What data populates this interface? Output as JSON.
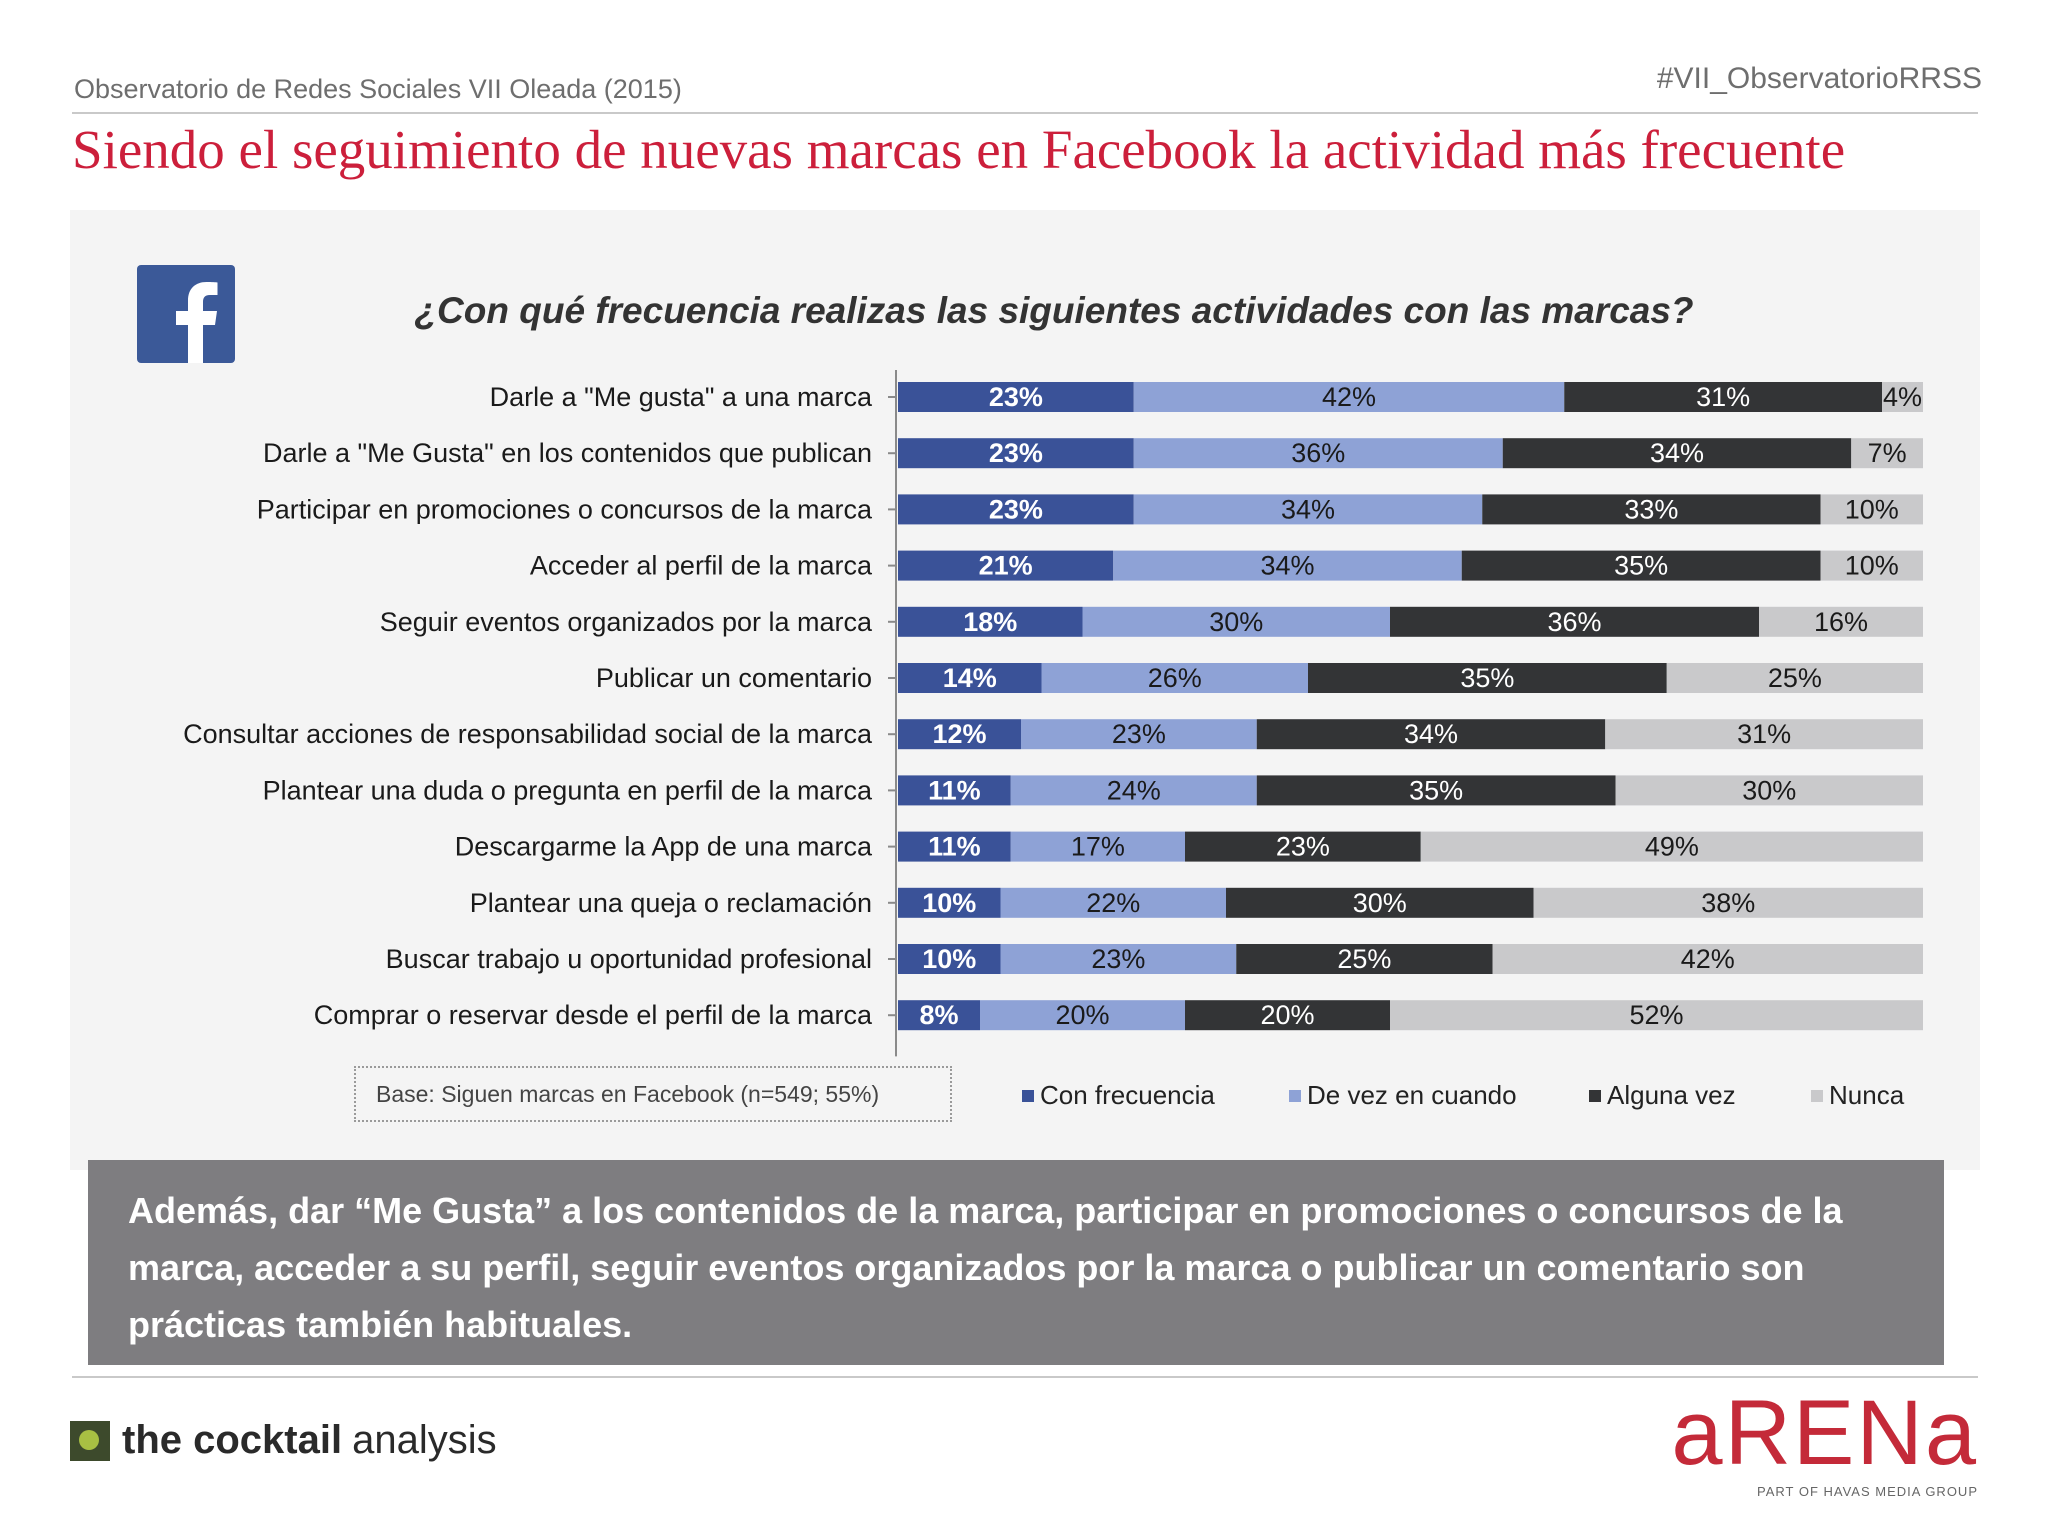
{
  "header": {
    "subtitle": "Observatorio de Redes Sociales VII Oleada (2015)",
    "hashtag": "#VII_ObservatorioRRSS",
    "title": "Siendo el seguimiento de nuevas marcas en Facebook la actividad más frecuente"
  },
  "question": "¿Con qué frecuencia realizas las siguientes actividades con las marcas?",
  "colors": {
    "title": "#cc1f3b",
    "con_frecuencia": "#3a5298",
    "de_vez_en_cuando": "#8ea2d6",
    "alguna_vez": "#333436",
    "nunca": "#c9c9cb"
  },
  "base_note": "Base: Siguen marcas en Facebook (n=549; 55%)",
  "chart_data": {
    "type": "bar",
    "orientation": "horizontal",
    "stacked": true,
    "title": "¿Con qué frecuencia realizas las siguientes actividades con las marcas?",
    "xlim": [
      0,
      100
    ],
    "categories": [
      "Darle a \"Me gusta\" a una marca",
      "Darle a \"Me Gusta\" en los contenidos que publican",
      "Participar en promociones o concursos de la marca",
      "Acceder al perfil de la marca",
      "Seguir eventos organizados por la marca",
      "Publicar un comentario",
      "Consultar acciones de responsabilidad social de la marca",
      "Plantear una duda o pregunta en perfil de la marca",
      "Descargarme la App de una marca",
      "Plantear una queja o reclamación",
      "Buscar trabajo u oportunidad profesional",
      "Comprar o reservar desde el perfil de la marca"
    ],
    "series": [
      {
        "name": "Con frecuencia",
        "values": [
          23,
          23,
          23,
          21,
          18,
          14,
          12,
          11,
          11,
          10,
          10,
          8
        ]
      },
      {
        "name": "De vez en cuando",
        "values": [
          42,
          36,
          34,
          34,
          30,
          26,
          23,
          24,
          17,
          22,
          23,
          20
        ]
      },
      {
        "name": "Alguna vez",
        "values": [
          31,
          34,
          33,
          35,
          36,
          35,
          34,
          35,
          23,
          30,
          25,
          20
        ]
      },
      {
        "name": "Nunca",
        "values": [
          4,
          7,
          10,
          10,
          16,
          25,
          31,
          30,
          49,
          38,
          42,
          52
        ]
      }
    ],
    "legend_position": "bottom"
  },
  "callout": "Además, dar “Me Gusta” a los contenidos de la marca, participar en promociones o concursos de la marca, acceder a su perfil, seguir eventos organizados por la marca o publicar un comentario son prácticas también habituales.",
  "footer": {
    "cocktail_bold": "the cocktail",
    "cocktail_light": "analysis",
    "arena": "aRENa",
    "arena_sub": "PART OF HAVAS MEDIA GROUP"
  }
}
